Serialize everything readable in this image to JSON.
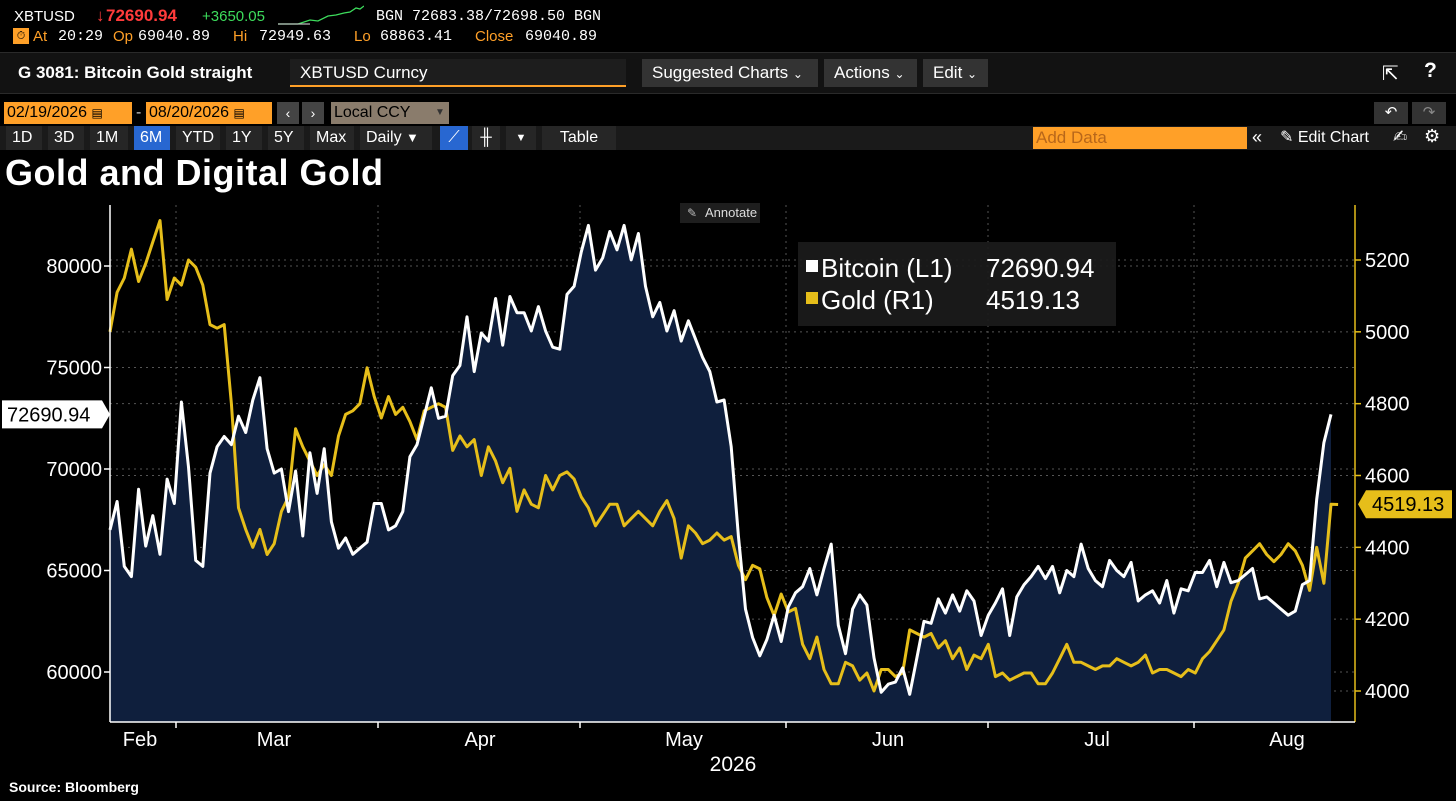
{
  "quote": {
    "ticker": "XBTUSD",
    "arrow": "↓",
    "last": "72690.94",
    "change": "+3650.05",
    "bid_ask": "BGN 72683.38/72698.50 BGN",
    "at_label": "At",
    "at_time": "20:29",
    "op_label": "Op",
    "op_value": "69040.89",
    "hi_label": "Hi",
    "hi_value": "72949.63",
    "lo_label": "Lo",
    "lo_value": "68863.41",
    "close_label": "Close",
    "close_value": "69040.89"
  },
  "titlebar": {
    "chart_name": "G 3081: Bitcoin Gold straight",
    "security": "XBTUSD Curncy",
    "suggested": "Suggested Charts",
    "actions": "Actions",
    "edit": "Edit",
    "help": "?"
  },
  "daterow": {
    "start_date": "02/19/2026",
    "end_date": "08/20/2026",
    "currency": "Local CCY"
  },
  "rangerow": {
    "ranges": [
      "1D",
      "3D",
      "1M",
      "6M",
      "YTD",
      "1Y",
      "5Y",
      "Max"
    ],
    "active_range": "6M",
    "frequency": "Daily",
    "table_label": "Table",
    "add_data": "Add Data",
    "edit_chart": "Edit Chart"
  },
  "annotate_label": "Annotate",
  "source": "Source:  Bloomberg",
  "colors": {
    "bitcoin": "#ffffff",
    "gold": "#e6be1a",
    "area": "#0f1f3d",
    "accent": "#ffa028"
  },
  "chart_data": {
    "type": "line",
    "title": "Gold and Digital Gold",
    "xlabel": "2026",
    "x_ticks": [
      "Feb",
      "Mar",
      "Apr",
      "May",
      "Jun",
      "Jul",
      "Aug"
    ],
    "left_axis": {
      "ticks": [
        60000,
        65000,
        70000,
        75000,
        80000
      ],
      "ylim": [
        58000,
        83000
      ]
    },
    "right_axis": {
      "ticks": [
        4000,
        4200,
        4400,
        4600,
        4800,
        5000,
        5200
      ],
      "ylim": [
        3950,
        5350
      ]
    },
    "legend_position": "top-center",
    "series": [
      {
        "name": "Bitcoin (L1)",
        "axis": "left",
        "last_value": "72690.94",
        "last_label": "72690.94",
        "area_fill": true,
        "values": [
          67000,
          68400,
          65200,
          64700,
          69000,
          66200,
          67700,
          65800,
          69500,
          68300,
          73300,
          70100,
          65500,
          65200,
          69800,
          71100,
          71600,
          71200,
          72600,
          71800,
          73400,
          74500,
          71000,
          69800,
          70000,
          67900,
          69900,
          66700,
          70800,
          68800,
          71000,
          67400,
          66100,
          66600,
          65800,
          66100,
          66400,
          68300,
          68300,
          67000,
          67200,
          67900,
          70600,
          71200,
          72600,
          74000,
          72500,
          72600,
          74600,
          75100,
          77500,
          74800,
          76700,
          76300,
          78400,
          76100,
          78500,
          77700,
          77700,
          76800,
          78000,
          76800,
          76000,
          75900,
          78600,
          79000,
          80700,
          82000,
          79800,
          80400,
          81700,
          80800,
          82000,
          80300,
          81600,
          79000,
          77500,
          78200,
          76800,
          77800,
          76300,
          77300,
          76400,
          75500,
          74800,
          73300,
          73400,
          71100,
          66700,
          63100,
          61700,
          60800,
          61600,
          62800,
          61500,
          63200,
          63900,
          64200,
          65100,
          63800,
          65100,
          66300,
          62300,
          60900,
          63100,
          63800,
          63300,
          60700,
          59000,
          59400,
          59500,
          60200,
          58900,
          60700,
          62500,
          62400,
          63600,
          62900,
          63800,
          63000,
          64000,
          63500,
          61800,
          62800,
          63400,
          64100,
          61800,
          63700,
          64300,
          64700,
          65200,
          64600,
          65200,
          63900,
          65000,
          64700,
          66300,
          65100,
          64500,
          64200,
          65500,
          65000,
          64700,
          65400,
          63500,
          63800,
          64000,
          63400,
          64500,
          62900,
          64100,
          64000,
          64900,
          64900,
          65500,
          64200,
          65400,
          64400,
          64500,
          64800,
          65100,
          63600,
          63700,
          63400,
          63100,
          62800,
          63000,
          64300,
          64500,
          68500,
          71300,
          72690.94
        ]
      },
      {
        "name": "Gold (R1)",
        "axis": "right",
        "last_value": "4519.13",
        "last_label": "4519.13",
        "area_fill": false,
        "values": [
          5000,
          5110,
          5150,
          5230,
          5140,
          5190,
          5250,
          5310,
          5090,
          5150,
          5130,
          5200,
          5180,
          5130,
          5020,
          5010,
          5020,
          4800,
          4510,
          4450,
          4400,
          4450,
          4380,
          4410,
          4500,
          4540,
          4730,
          4680,
          4640,
          4600,
          4630,
          4600,
          4710,
          4770,
          4780,
          4800,
          4900,
          4820,
          4760,
          4820,
          4770,
          4790,
          4750,
          4700,
          4780,
          4790,
          4800,
          4790,
          4670,
          4710,
          4680,
          4700,
          4600,
          4680,
          4640,
          4580,
          4620,
          4500,
          4560,
          4520,
          4510,
          4600,
          4560,
          4600,
          4610,
          4590,
          4540,
          4510,
          4460,
          4490,
          4520,
          4520,
          4460,
          4480,
          4500,
          4480,
          4460,
          4500,
          4530,
          4480,
          4370,
          4460,
          4440,
          4410,
          4420,
          4440,
          4420,
          4430,
          4350,
          4310,
          4350,
          4340,
          4260,
          4210,
          4270,
          4220,
          4230,
          4130,
          4090,
          4150,
          4060,
          4020,
          4020,
          4080,
          4070,
          4030,
          4050,
          4000,
          4060,
          4060,
          4040,
          4050,
          4170,
          4160,
          4150,
          4160,
          4120,
          4140,
          4090,
          4120,
          4060,
          4100,
          4090,
          4130,
          4040,
          4050,
          4030,
          4040,
          4050,
          4050,
          4020,
          4020,
          4050,
          4090,
          4130,
          4080,
          4080,
          4070,
          4060,
          4070,
          4070,
          4090,
          4080,
          4070,
          4080,
          4100,
          4050,
          4060,
          4060,
          4050,
          4040,
          4060,
          4050,
          4090,
          4110,
          4140,
          4170,
          4250,
          4300,
          4370,
          4390,
          4410,
          4380,
          4360,
          4380,
          4410,
          4390,
          4350,
          4280,
          4400,
          4300,
          4520,
          4519.13
        ]
      }
    ]
  }
}
